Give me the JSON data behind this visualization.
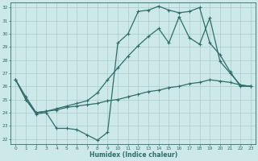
{
  "xlabel": "Humidex (Indice chaleur)",
  "background_color": "#cce8e8",
  "grid_color": "#aacccc",
  "line_color": "#2e6e6b",
  "xlim": [
    0,
    23
  ],
  "ylim": [
    22,
    32
  ],
  "xticks": [
    0,
    1,
    2,
    3,
    4,
    5,
    6,
    7,
    8,
    9,
    10,
    11,
    12,
    13,
    14,
    15,
    16,
    17,
    18,
    19,
    20,
    21,
    22,
    23
  ],
  "yticks": [
    22,
    23,
    24,
    25,
    26,
    27,
    28,
    29,
    30,
    31,
    32
  ],
  "series": [
    [
      26.5,
      25.0,
      23.9,
      24.0,
      22.8,
      22.8,
      22.7,
      22.3,
      21.9,
      22.5,
      29.3,
      30.0,
      31.7,
      31.8,
      32.1,
      31.8,
      31.6,
      31.7,
      32.0,
      29.3,
      28.4,
      27.1,
      26.0,
      26.0
    ],
    [
      26.5,
      25.2,
      24.0,
      24.1,
      24.2,
      24.4,
      24.5,
      24.6,
      24.7,
      24.9,
      25.0,
      25.2,
      25.4,
      25.6,
      25.7,
      25.9,
      26.0,
      26.2,
      26.3,
      26.5,
      26.4,
      26.3,
      26.1,
      26.0
    ],
    [
      26.5,
      25.0,
      24.0,
      24.1,
      24.3,
      24.5,
      24.7,
      24.9,
      25.5,
      26.5,
      27.4,
      28.3,
      29.1,
      29.8,
      30.4,
      29.3,
      31.3,
      29.7,
      29.2,
      31.2,
      27.9,
      27.0,
      26.1,
      26.0
    ]
  ]
}
